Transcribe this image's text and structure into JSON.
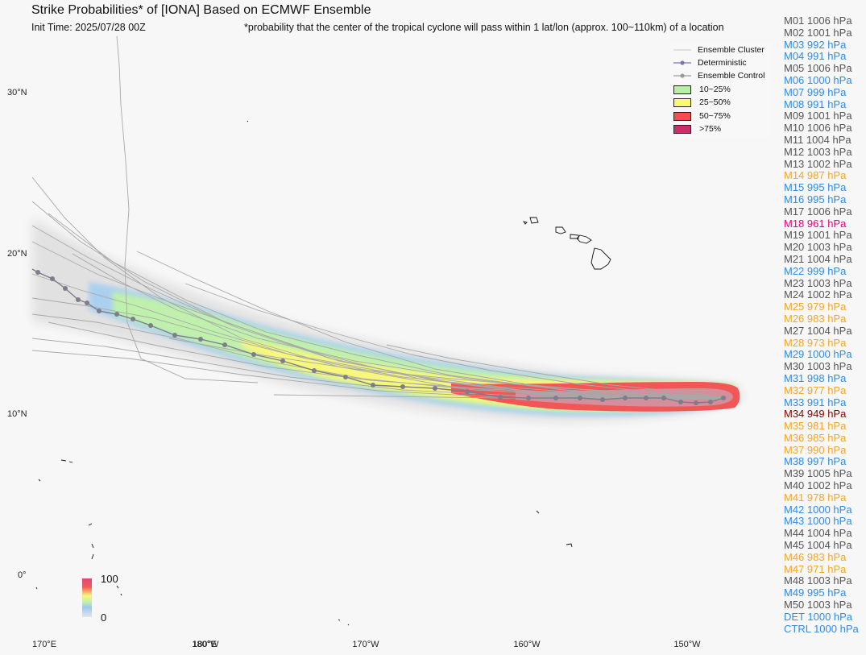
{
  "header": {
    "title": "Strike Probabilities* of [IONA] Based on ECMWF Ensemble",
    "init_time": "Init Time: 2025/07/28 00Z",
    "note": "*probability that the center of the tropical cyclone will pass within 1 lat/lon (approx. 100~110km) of a location"
  },
  "axes": {
    "lat_labels": [
      "30°N",
      "20°N",
      "10°N",
      "0°"
    ],
    "lon_labels": [
      "170°E",
      "180°W",
      "180°E",
      "170°W",
      "160°W",
      "150°W"
    ]
  },
  "legend": {
    "items": [
      {
        "label": "Ensemble Cluster",
        "kind": "thin-line",
        "color": "#c8c8c8"
      },
      {
        "label": "Deterministic",
        "kind": "line-marker",
        "color": "#7a78b0"
      },
      {
        "label": "Ensemble Control",
        "kind": "line-marker",
        "color": "#9a9a9a"
      },
      {
        "label": "10~25%",
        "kind": "box",
        "color": "#b7f0a4"
      },
      {
        "label": "25~50%",
        "kind": "box",
        "color": "#fafa6e"
      },
      {
        "label": "50~75%",
        "kind": "box",
        "color": "#f25050"
      },
      {
        "label": ">75%",
        "kind": "box",
        "color": "#c8306a"
      }
    ]
  },
  "colorbar": {
    "max": "100",
    "min": "0"
  },
  "colors": {
    "gray": "#555555",
    "blue": "#2e8be6",
    "orange": "#f5a623",
    "pink": "#e6007e",
    "dark_red": "#8b0000"
  },
  "members": [
    {
      "text": "M01 1006 hPa",
      "color": "#555555"
    },
    {
      "text": "M02 1001 hPa",
      "color": "#555555"
    },
    {
      "text": "M03 992 hPa",
      "color": "#2e8be6"
    },
    {
      "text": "M04 991 hPa",
      "color": "#2e8be6"
    },
    {
      "text": "M05 1006 hPa",
      "color": "#555555"
    },
    {
      "text": "M06 1000 hPa",
      "color": "#2e8be6"
    },
    {
      "text": "M07 999 hPa",
      "color": "#2e8be6"
    },
    {
      "text": "M08 991 hPa",
      "color": "#2e8be6"
    },
    {
      "text": "M09 1001 hPa",
      "color": "#555555"
    },
    {
      "text": "M10 1006 hPa",
      "color": "#555555"
    },
    {
      "text": "M11 1004 hPa",
      "color": "#555555"
    },
    {
      "text": "M12 1003 hPa",
      "color": "#555555"
    },
    {
      "text": "M13 1002 hPa",
      "color": "#555555"
    },
    {
      "text": "M14 987 hPa",
      "color": "#f5a623"
    },
    {
      "text": "M15 995 hPa",
      "color": "#2e8be6"
    },
    {
      "text": "M16 995 hPa",
      "color": "#2e8be6"
    },
    {
      "text": "M17 1006 hPa",
      "color": "#555555"
    },
    {
      "text": "M18 961 hPa",
      "color": "#e6007e"
    },
    {
      "text": "M19 1001 hPa",
      "color": "#555555"
    },
    {
      "text": "M20 1003 hPa",
      "color": "#555555"
    },
    {
      "text": "M21 1004 hPa",
      "color": "#555555"
    },
    {
      "text": "M22 999 hPa",
      "color": "#2e8be6"
    },
    {
      "text": "M23 1003 hPa",
      "color": "#555555"
    },
    {
      "text": "M24 1002 hPa",
      "color": "#555555"
    },
    {
      "text": "M25 979 hPa",
      "color": "#f5a623"
    },
    {
      "text": "M26 983 hPa",
      "color": "#f5a623"
    },
    {
      "text": "M27 1004 hPa",
      "color": "#555555"
    },
    {
      "text": "M28 973 hPa",
      "color": "#f5a623"
    },
    {
      "text": "M29 1000 hPa",
      "color": "#2e8be6"
    },
    {
      "text": "M30 1003 hPa",
      "color": "#555555"
    },
    {
      "text": "M31 998 hPa",
      "color": "#2e8be6"
    },
    {
      "text": "M32 977 hPa",
      "color": "#f5a623"
    },
    {
      "text": "M33 991 hPa",
      "color": "#2e8be6"
    },
    {
      "text": "M34 949 hPa",
      "color": "#8b0000"
    },
    {
      "text": "M35 981 hPa",
      "color": "#f5a623"
    },
    {
      "text": "M36 985 hPa",
      "color": "#f5a623"
    },
    {
      "text": "M37 990 hPa",
      "color": "#f5a623"
    },
    {
      "text": "M38 997 hPa",
      "color": "#2e8be6"
    },
    {
      "text": "M39 1005 hPa",
      "color": "#555555"
    },
    {
      "text": "M40 1002 hPa",
      "color": "#555555"
    },
    {
      "text": "M41 978 hPa",
      "color": "#f5a623"
    },
    {
      "text": "M42 1000 hPa",
      "color": "#2e8be6"
    },
    {
      "text": "M43 1000 hPa",
      "color": "#2e8be6"
    },
    {
      "text": "M44 1004 hPa",
      "color": "#555555"
    },
    {
      "text": "M45 1004 hPa",
      "color": "#555555"
    },
    {
      "text": "M46 983 hPa",
      "color": "#f5a623"
    },
    {
      "text": "M47 971 hPa",
      "color": "#f5a623"
    },
    {
      "text": "M48 1003 hPa",
      "color": "#555555"
    },
    {
      "text": "M49 995 hPa",
      "color": "#2e8be6"
    },
    {
      "text": "M50 1003 hPa",
      "color": "#555555"
    },
    {
      "text": "DET 1000 hPa",
      "color": "#2e8be6"
    },
    {
      "text": "CTRL 1000 hPa",
      "color": "#2e8be6"
    }
  ]
}
